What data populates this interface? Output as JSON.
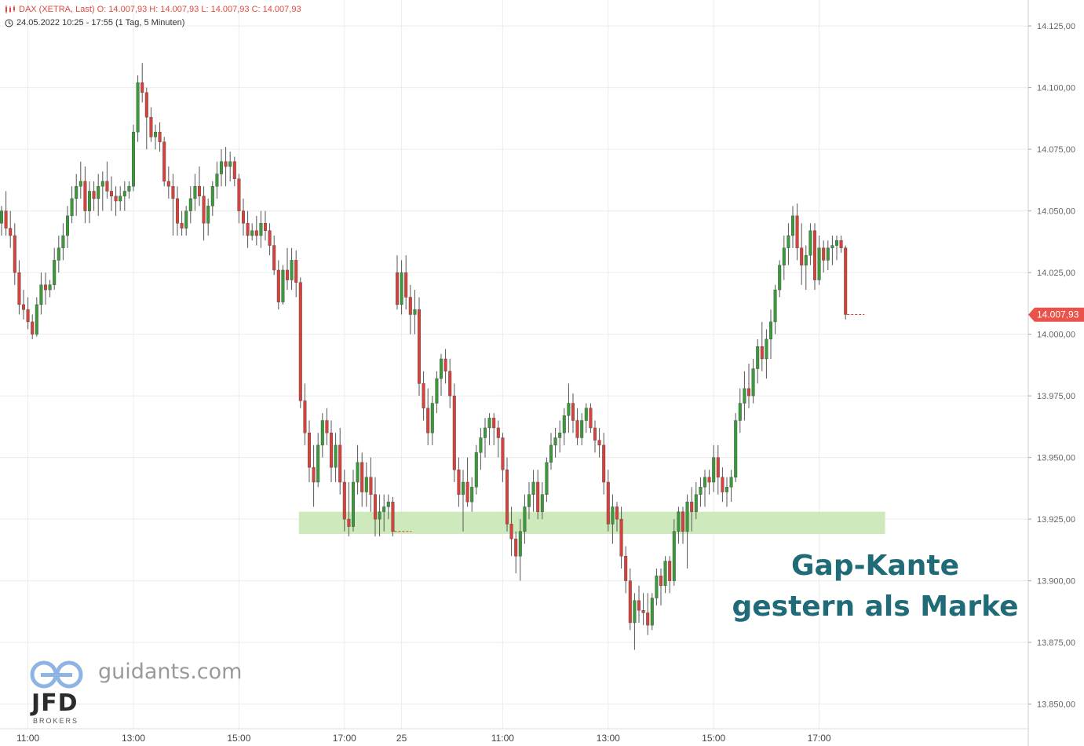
{
  "header": {
    "line1": "DAX (XETRA, Last)  O: 14.007,93  H: 14.007,93  L: 14.007,93  C: 14.007,93",
    "line2": "24.05.2022 10:25 - 17:55   (1 Tag, 5 Minuten)"
  },
  "annotation": {
    "line1": "Gap-Kante",
    "line2": "gestern als Marke"
  },
  "branding": {
    "site": "guidants.com",
    "broker": "JFD",
    "broker_sub": "BROKERS"
  },
  "colors": {
    "up": "#3a9a3a",
    "down": "#d9423a",
    "zone": "#c9e8b5",
    "price_tag": "#e9534a",
    "annotation": "#1f6b78"
  },
  "chart_data": {
    "type": "candlestick",
    "ylim": [
      13840,
      14140
    ],
    "y_ticks": [
      13850,
      13875,
      13900,
      13925,
      13950,
      13975,
      14000,
      14025,
      14050,
      14075,
      14100,
      14125
    ],
    "y_tick_labels": [
      "13.850,00",
      "13.875,00",
      "13.900,00",
      "13.925,00",
      "13.950,00",
      "13.975,00",
      "14.000,00",
      "14.025,00",
      "14.050,00",
      "14.075,00",
      "14.100,00",
      "14.125,00"
    ],
    "x_ticks": [
      {
        "bar": 6,
        "label": "11:00"
      },
      {
        "bar": 30,
        "label": "13:00"
      },
      {
        "bar": 54,
        "label": "15:00"
      },
      {
        "bar": 78,
        "label": "17:00"
      },
      {
        "bar": 91,
        "label": "25"
      },
      {
        "bar": 114,
        "label": "11:00"
      },
      {
        "bar": 138,
        "label": "13:00"
      },
      {
        "bar": 162,
        "label": "15:00"
      },
      {
        "bar": 186,
        "label": "17:00"
      }
    ],
    "last_price": 14007.93,
    "last_price_label": "14.007,93",
    "support_zone": {
      "low": 13919,
      "high": 13928,
      "from_bar": 68,
      "to_bar": 201
    },
    "candles": [
      [
        14045,
        14052,
        14040,
        14050
      ],
      [
        14050,
        14058,
        14040,
        14043
      ],
      [
        14043,
        14050,
        14035,
        14040
      ],
      [
        14040,
        14045,
        14020,
        14025
      ],
      [
        14025,
        14030,
        14008,
        14012
      ],
      [
        14012,
        14018,
        14006,
        14010
      ],
      [
        14010,
        14015,
        14002,
        14005
      ],
      [
        14005,
        14008,
        13998,
        14000
      ],
      [
        14000,
        14015,
        13999,
        14012
      ],
      [
        14012,
        14025,
        14008,
        14020
      ],
      [
        14020,
        14025,
        14012,
        14018
      ],
      [
        14018,
        14022,
        14015,
        14020
      ],
      [
        14020,
        14035,
        14018,
        14030
      ],
      [
        14030,
        14040,
        14025,
        14035
      ],
      [
        14035,
        14045,
        14030,
        14040
      ],
      [
        14040,
        14052,
        14035,
        14048
      ],
      [
        14048,
        14060,
        14045,
        14055
      ],
      [
        14055,
        14065,
        14048,
        14060
      ],
      [
        14060,
        14070,
        14055,
        14062
      ],
      [
        14062,
        14068,
        14045,
        14050
      ],
      [
        14050,
        14062,
        14045,
        14058
      ],
      [
        14058,
        14062,
        14050,
        14055
      ],
      [
        14055,
        14065,
        14048,
        14060
      ],
      [
        14060,
        14066,
        14050,
        14062
      ],
      [
        14062,
        14070,
        14055,
        14058
      ],
      [
        14058,
        14064,
        14050,
        14056
      ],
      [
        14056,
        14060,
        14048,
        14054
      ],
      [
        14054,
        14060,
        14050,
        14056
      ],
      [
        14056,
        14062,
        14050,
        14058
      ],
      [
        14058,
        14062,
        14055,
        14060
      ],
      [
        14060,
        14085,
        14058,
        14082
      ],
      [
        14082,
        14105,
        14078,
        14102
      ],
      [
        14102,
        14110,
        14094,
        14098
      ],
      [
        14098,
        14100,
        14075,
        14088
      ],
      [
        14088,
        14092,
        14078,
        14080
      ],
      [
        14080,
        14085,
        14075,
        14082
      ],
      [
        14082,
        14086,
        14074,
        14078
      ],
      [
        14078,
        14080,
        14060,
        14062
      ],
      [
        14062,
        14068,
        14055,
        14060
      ],
      [
        14060,
        14065,
        14040,
        14055
      ],
      [
        14055,
        14060,
        14040,
        14045
      ],
      [
        14045,
        14050,
        14040,
        14043
      ],
      [
        14043,
        14052,
        14040,
        14050
      ],
      [
        14050,
        14060,
        14045,
        14055
      ],
      [
        14055,
        14065,
        14050,
        14060
      ],
      [
        14060,
        14068,
        14052,
        14056
      ],
      [
        14056,
        14060,
        14038,
        14045
      ],
      [
        14045,
        14055,
        14040,
        14052
      ],
      [
        14052,
        14062,
        14048,
        14060
      ],
      [
        14060,
        14070,
        14055,
        14065
      ],
      [
        14065,
        14075,
        14060,
        14070
      ],
      [
        14070,
        14076,
        14060,
        14068
      ],
      [
        14068,
        14074,
        14062,
        14070
      ],
      [
        14070,
        14072,
        14060,
        14063
      ],
      [
        14063,
        14065,
        14045,
        14050
      ],
      [
        14050,
        14055,
        14040,
        14045
      ],
      [
        14045,
        14050,
        14035,
        14040
      ],
      [
        14040,
        14045,
        14038,
        14042
      ],
      [
        14042,
        14048,
        14036,
        14040
      ],
      [
        14040,
        14050,
        14035,
        14045
      ],
      [
        14045,
        14050,
        14038,
        14042
      ],
      [
        14042,
        14045,
        14032,
        14036
      ],
      [
        14036,
        14040,
        14024,
        14026
      ],
      [
        14026,
        14030,
        14010,
        14013
      ],
      [
        14013,
        14028,
        14012,
        14026
      ],
      [
        14026,
        14035,
        14018,
        14022
      ],
      [
        14022,
        14035,
        14018,
        14030
      ],
      [
        14030,
        14034,
        14015,
        14021
      ],
      [
        14021,
        14023,
        13970,
        13973
      ],
      [
        13973,
        13980,
        13955,
        13960
      ],
      [
        13960,
        13965,
        13940,
        13946
      ],
      [
        13946,
        13955,
        13930,
        13940
      ],
      [
        13940,
        13960,
        13938,
        13955
      ],
      [
        13955,
        13968,
        13950,
        13965
      ],
      [
        13965,
        13970,
        13955,
        13960
      ],
      [
        13960,
        13965,
        13940,
        13946
      ],
      [
        13946,
        13960,
        13940,
        13955
      ],
      [
        13955,
        13962,
        13935,
        13940
      ],
      [
        13940,
        13945,
        13920,
        13925
      ],
      [
        13925,
        13940,
        13918,
        13922
      ],
      [
        13922,
        13945,
        13920,
        13940
      ],
      [
        13940,
        13955,
        13935,
        13948
      ],
      [
        13948,
        13952,
        13930,
        13936
      ],
      [
        13936,
        13948,
        13930,
        13942
      ],
      [
        13942,
        13950,
        13928,
        13935
      ],
      [
        13935,
        13942,
        13918,
        13925
      ],
      [
        13925,
        13935,
        13918,
        13928
      ],
      [
        13928,
        13935,
        13920,
        13930
      ],
      [
        13930,
        13935,
        13925,
        13932
      ],
      [
        13932,
        13934,
        13918,
        13920
      ],
      [
        14025,
        14032,
        14010,
        14012
      ],
      [
        14012,
        14030,
        14008,
        14025
      ],
      [
        14025,
        14032,
        14010,
        14015
      ],
      [
        14015,
        14020,
        14000,
        14008
      ],
      [
        14008,
        14018,
        14000,
        14010
      ],
      [
        14010,
        14015,
        13975,
        13980
      ],
      [
        13980,
        13985,
        13965,
        13970
      ],
      [
        13970,
        13978,
        13955,
        13960
      ],
      [
        13960,
        13975,
        13955,
        13972
      ],
      [
        13972,
        13985,
        13968,
        13982
      ],
      [
        13982,
        13992,
        13975,
        13990
      ],
      [
        13990,
        13994,
        13980,
        13985
      ],
      [
        13985,
        13990,
        13970,
        13975
      ],
      [
        13975,
        13980,
        13940,
        13945
      ],
      [
        13945,
        13950,
        13930,
        13935
      ],
      [
        13935,
        13945,
        13920,
        13940
      ],
      [
        13940,
        13950,
        13930,
        13932
      ],
      [
        13932,
        13942,
        13928,
        13938
      ],
      [
        13938,
        13955,
        13935,
        13952
      ],
      [
        13952,
        13962,
        13945,
        13958
      ],
      [
        13958,
        13966,
        13950,
        13962
      ],
      [
        13962,
        13968,
        13955,
        13966
      ],
      [
        13966,
        13968,
        13955,
        13962
      ],
      [
        13962,
        13965,
        13950,
        13958
      ],
      [
        13958,
        13960,
        13940,
        13945
      ],
      [
        13945,
        13950,
        13920,
        13923
      ],
      [
        13923,
        13930,
        13910,
        13917
      ],
      [
        13917,
        13920,
        13903,
        13910
      ],
      [
        13910,
        13925,
        13900,
        13920
      ],
      [
        13920,
        13935,
        13915,
        13930
      ],
      [
        13930,
        13940,
        13925,
        13935
      ],
      [
        13935,
        13945,
        13928,
        13940
      ],
      [
        13940,
        13945,
        13925,
        13928
      ],
      [
        13928,
        13940,
        13925,
        13935
      ],
      [
        13935,
        13950,
        13932,
        13948
      ],
      [
        13948,
        13960,
        13945,
        13955
      ],
      [
        13955,
        13962,
        13950,
        13958
      ],
      [
        13958,
        13965,
        13952,
        13960
      ],
      [
        13960,
        13970,
        13955,
        13967
      ],
      [
        13967,
        13980,
        13960,
        13972
      ],
      [
        13972,
        13976,
        13960,
        13965
      ],
      [
        13965,
        13970,
        13955,
        13958
      ],
      [
        13958,
        13968,
        13955,
        13965
      ],
      [
        13965,
        13972,
        13960,
        13970
      ],
      [
        13970,
        13972,
        13960,
        13962
      ],
      [
        13962,
        13965,
        13952,
        13957
      ],
      [
        13957,
        13962,
        13950,
        13955
      ],
      [
        13955,
        13960,
        13935,
        13940
      ],
      [
        13940,
        13945,
        13920,
        13923
      ],
      [
        13923,
        13935,
        13915,
        13930
      ],
      [
        13930,
        13932,
        13920,
        13925
      ],
      [
        13925,
        13930,
        13905,
        13910
      ],
      [
        13910,
        13914,
        13895,
        13900
      ],
      [
        13900,
        13905,
        13880,
        13883
      ],
      [
        13883,
        13895,
        13872,
        13892
      ],
      [
        13892,
        13898,
        13883,
        13888
      ],
      [
        13888,
        13895,
        13882,
        13887
      ],
      [
        13887,
        13895,
        13878,
        13882
      ],
      [
        13882,
        13895,
        13880,
        13893
      ],
      [
        13893,
        13905,
        13890,
        13902
      ],
      [
        13902,
        13905,
        13890,
        13898
      ],
      [
        13898,
        13910,
        13895,
        13908
      ],
      [
        13908,
        13910,
        13895,
        13900
      ],
      [
        13900,
        13925,
        13898,
        13920
      ],
      [
        13920,
        13930,
        13915,
        13928
      ],
      [
        13928,
        13930,
        13915,
        13920
      ],
      [
        13920,
        13935,
        13905,
        13932
      ],
      [
        13932,
        13938,
        13920,
        13928
      ],
      [
        13928,
        13940,
        13925,
        13935
      ],
      [
        13935,
        13942,
        13930,
        13938
      ],
      [
        13938,
        13945,
        13930,
        13942
      ],
      [
        13942,
        13945,
        13935,
        13940
      ],
      [
        13940,
        13955,
        13936,
        13950
      ],
      [
        13950,
        13955,
        13935,
        13942
      ],
      [
        13942,
        13946,
        13932,
        13936
      ],
      [
        13936,
        13942,
        13930,
        13938
      ],
      [
        13938,
        13945,
        13932,
        13942
      ],
      [
        13942,
        13968,
        13940,
        13965
      ],
      [
        13965,
        13978,
        13960,
        13972
      ],
      [
        13972,
        13985,
        13965,
        13978
      ],
      [
        13978,
        13988,
        13970,
        13975
      ],
      [
        13975,
        13990,
        13972,
        13986
      ],
      [
        13986,
        13998,
        13980,
        13995
      ],
      [
        13995,
        14005,
        13985,
        13990
      ],
      [
        13990,
        14002,
        13982,
        13998
      ],
      [
        13998,
        14010,
        13990,
        14005
      ],
      [
        14005,
        14020,
        14000,
        14018
      ],
      [
        14018,
        14030,
        14015,
        14028
      ],
      [
        14028,
        14040,
        14022,
        14035
      ],
      [
        14035,
        14045,
        14028,
        14040
      ],
      [
        14040,
        14052,
        14035,
        14048
      ],
      [
        14048,
        14053,
        14030,
        14035
      ],
      [
        14035,
        14045,
        14020,
        14028
      ],
      [
        14028,
        14036,
        14018,
        14032
      ],
      [
        14032,
        14045,
        14028,
        14042
      ],
      [
        14042,
        14045,
        14018,
        14022
      ],
      [
        14022,
        14040,
        14020,
        14035
      ],
      [
        14035,
        14038,
        14025,
        14030
      ],
      [
        14030,
        14038,
        14026,
        14035
      ],
      [
        14035,
        14040,
        14028,
        14036
      ],
      [
        14036,
        14040,
        14030,
        14038
      ],
      [
        14038,
        14040,
        14033,
        14035
      ],
      [
        14035,
        14036,
        14006,
        14008
      ]
    ]
  }
}
